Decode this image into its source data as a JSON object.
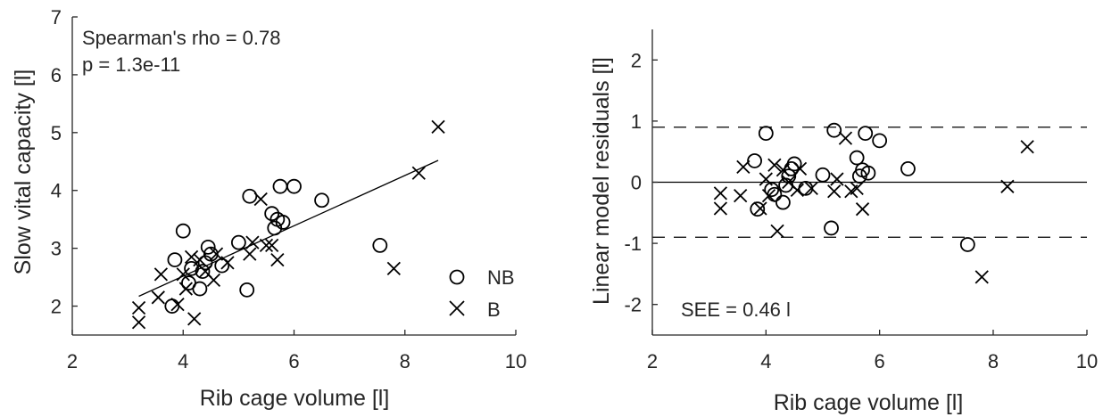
{
  "chart_data": [
    {
      "type": "scatter",
      "xlabel": "Rib cage volume [l]",
      "ylabel": "Slow vital capacity [l]",
      "xlim": [
        2,
        10
      ],
      "ylim": [
        1.5,
        7
      ],
      "xticks": [
        2,
        4,
        6,
        8,
        10
      ],
      "yticks": [
        2,
        3,
        4,
        5,
        6,
        7
      ],
      "annotations": [
        "Spearman's rho = 0.78",
        "p = 1.3e-11"
      ],
      "legend": {
        "position": "bottom-right",
        "entries": [
          {
            "label": "NB",
            "marker": "circle"
          },
          {
            "label": "B",
            "marker": "x"
          }
        ]
      },
      "series": [
        {
          "name": "NB",
          "marker": "circle",
          "points": [
            [
              3.8,
              2.0
            ],
            [
              3.85,
              2.8
            ],
            [
              4.0,
              3.3
            ],
            [
              4.1,
              2.4
            ],
            [
              4.15,
              2.65
            ],
            [
              4.3,
              2.3
            ],
            [
              4.35,
              2.6
            ],
            [
              4.4,
              2.75
            ],
            [
              4.45,
              3.02
            ],
            [
              4.5,
              2.9
            ],
            [
              4.7,
              2.7
            ],
            [
              5.0,
              3.1
            ],
            [
              5.15,
              2.28
            ],
            [
              5.2,
              3.9
            ],
            [
              5.6,
              3.6
            ],
            [
              5.65,
              3.35
            ],
            [
              5.7,
              3.5
            ],
            [
              5.75,
              4.07
            ],
            [
              5.8,
              3.45
            ],
            [
              6.0,
              4.07
            ],
            [
              6.5,
              3.83
            ],
            [
              7.55,
              3.05
            ]
          ]
        },
        {
          "name": "B",
          "marker": "x",
          "points": [
            [
              3.2,
              1.72
            ],
            [
              3.2,
              1.97
            ],
            [
              3.55,
              2.15
            ],
            [
              3.6,
              2.55
            ],
            [
              3.9,
              2.03
            ],
            [
              4.0,
              2.55
            ],
            [
              4.05,
              2.3
            ],
            [
              4.15,
              2.85
            ],
            [
              4.2,
              1.78
            ],
            [
              4.3,
              2.8
            ],
            [
              4.4,
              2.6
            ],
            [
              4.55,
              2.45
            ],
            [
              4.6,
              2.9
            ],
            [
              4.8,
              2.75
            ],
            [
              5.2,
              2.9
            ],
            [
              5.25,
              3.1
            ],
            [
              5.4,
              3.85
            ],
            [
              5.5,
              3.05
            ],
            [
              5.6,
              3.05
            ],
            [
              5.7,
              2.8
            ],
            [
              7.8,
              2.65
            ],
            [
              8.25,
              4.3
            ],
            [
              8.6,
              5.1
            ]
          ]
        }
      ],
      "fit_line": {
        "x": [
          3.2,
          8.6
        ],
        "y": [
          2.17,
          4.52
        ]
      }
    },
    {
      "type": "scatter",
      "xlabel": "Rib cage volume [l]",
      "ylabel": "Linear model residuals [l]",
      "xlim": [
        2,
        9.65
      ],
      "ylim": [
        -2.5,
        2.5
      ],
      "xticks": [
        2,
        4,
        6,
        8,
        10
      ],
      "yticks": [
        -2,
        -1,
        0,
        1,
        2
      ],
      "annotations": [
        "SEE = 0.46 l"
      ],
      "series": [
        {
          "name": "NB",
          "marker": "circle",
          "points": [
            [
              3.8,
              0.35
            ],
            [
              3.85,
              -0.44
            ],
            [
              4.0,
              0.8
            ],
            [
              4.1,
              -0.12
            ],
            [
              4.15,
              -0.2
            ],
            [
              4.3,
              -0.33
            ],
            [
              4.35,
              -0.05
            ],
            [
              4.4,
              0.1
            ],
            [
              4.45,
              0.22
            ],
            [
              4.5,
              0.3
            ],
            [
              4.7,
              -0.1
            ],
            [
              5.0,
              0.12
            ],
            [
              5.15,
              -0.75
            ],
            [
              5.2,
              0.85
            ],
            [
              5.6,
              0.4
            ],
            [
              5.65,
              0.1
            ],
            [
              5.7,
              0.2
            ],
            [
              5.75,
              0.8
            ],
            [
              5.8,
              0.15
            ],
            [
              6.0,
              0.68
            ],
            [
              6.5,
              0.22
            ],
            [
              7.55,
              -1.02
            ]
          ]
        },
        {
          "name": "B",
          "marker": "x",
          "points": [
            [
              3.2,
              -0.43
            ],
            [
              3.2,
              -0.18
            ],
            [
              3.55,
              -0.22
            ],
            [
              3.6,
              0.25
            ],
            [
              3.9,
              -0.43
            ],
            [
              4.0,
              0.05
            ],
            [
              4.05,
              -0.22
            ],
            [
              4.15,
              0.28
            ],
            [
              4.2,
              -0.8
            ],
            [
              4.3,
              0.2
            ],
            [
              4.4,
              0.0
            ],
            [
              4.55,
              -0.13
            ],
            [
              4.6,
              0.22
            ],
            [
              4.8,
              -0.1
            ],
            [
              5.2,
              -0.15
            ],
            [
              5.25,
              0.05
            ],
            [
              5.4,
              0.72
            ],
            [
              5.5,
              -0.15
            ],
            [
              5.6,
              -0.1
            ],
            [
              5.7,
              -0.44
            ],
            [
              7.8,
              -1.55
            ],
            [
              8.25,
              -0.07
            ],
            [
              8.6,
              0.58
            ]
          ]
        }
      ],
      "reference_lines": [
        {
          "y": 0,
          "style": "solid"
        },
        {
          "y": 0.9,
          "style": "dashed"
        },
        {
          "y": -0.9,
          "style": "dashed"
        }
      ]
    }
  ]
}
